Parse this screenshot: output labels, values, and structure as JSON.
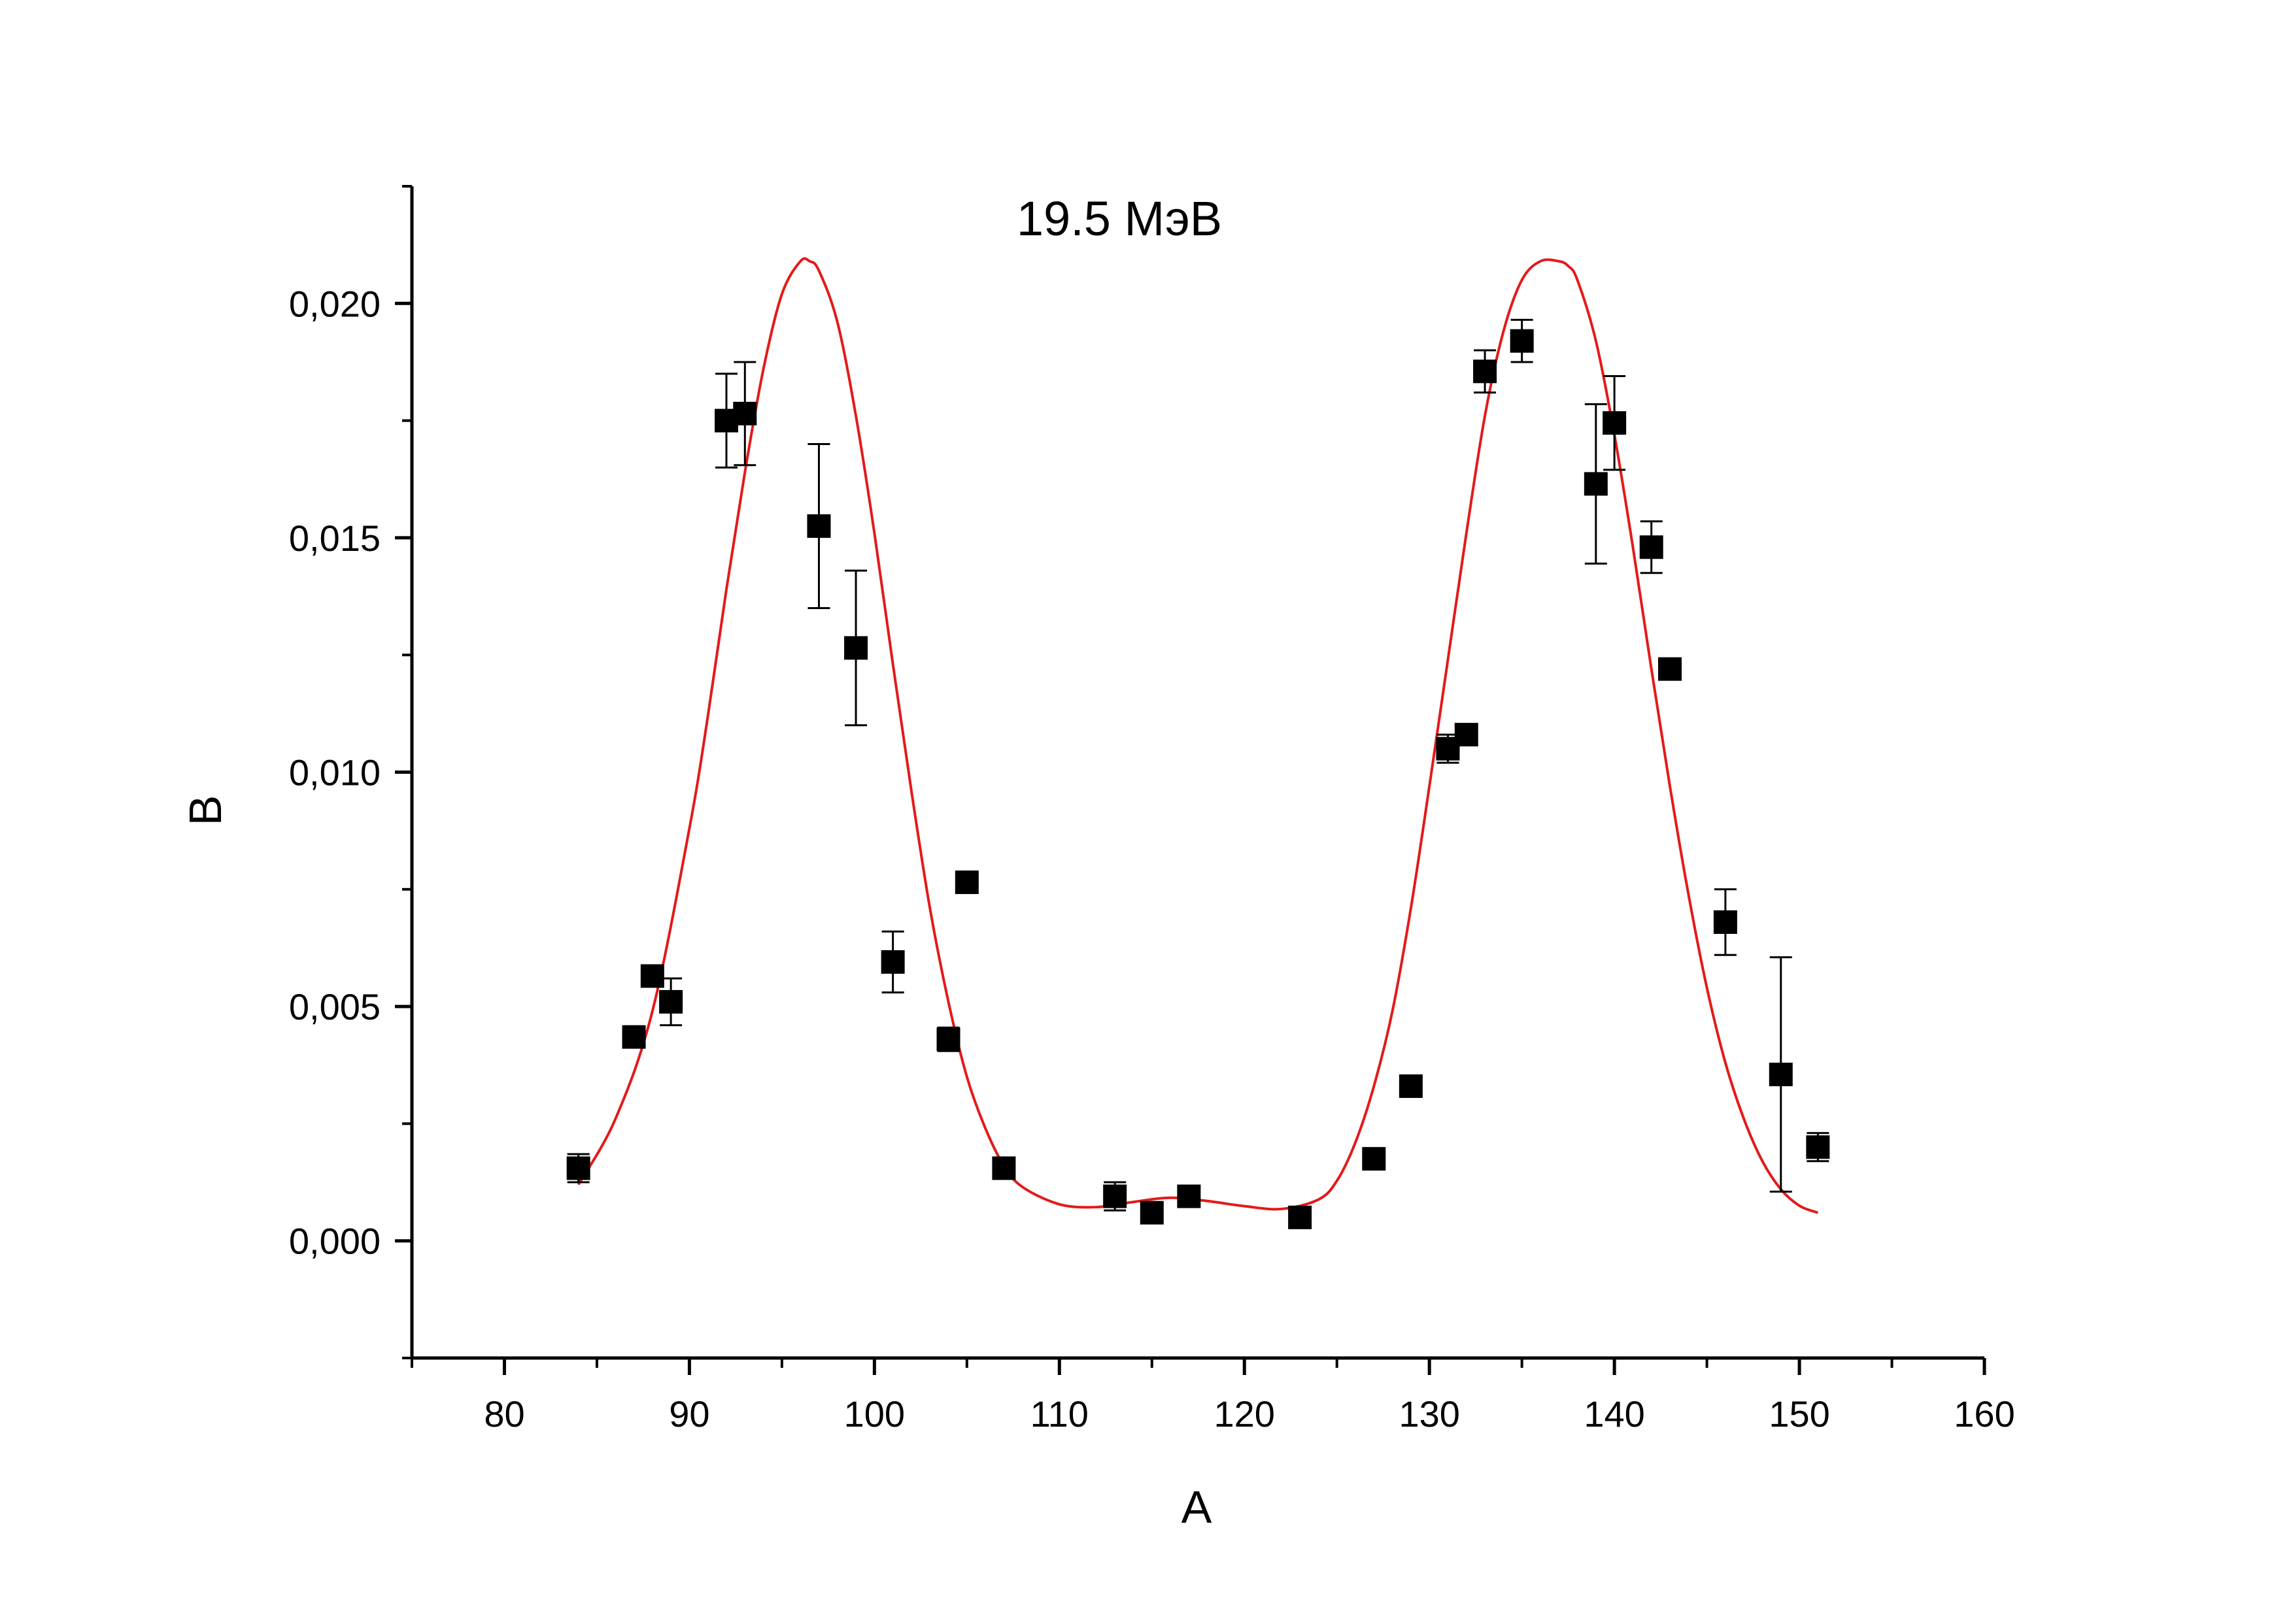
{
  "chart_data": {
    "type": "scatter",
    "title": "19.5 МэВ",
    "xlabel": "A",
    "ylabel": "B",
    "xlim": [
      75,
      160
    ],
    "ylim": [
      -0.0025,
      0.0225
    ],
    "x_ticks": [
      80,
      90,
      100,
      110,
      120,
      130,
      140,
      150,
      160
    ],
    "x_tick_labels": [
      "80",
      "90",
      "100",
      "110",
      "120",
      "130",
      "140",
      "150",
      "160"
    ],
    "y_ticks": [
      0.0,
      0.005,
      0.01,
      0.015,
      0.02
    ],
    "y_tick_labels": [
      "0,000",
      "0,005",
      "0,010",
      "0,015",
      "0,020"
    ],
    "grid": false,
    "series": [
      {
        "kind": "points",
        "color": "#000000",
        "marker": "square",
        "points": [
          {
            "x": 84,
            "y": 0.00155,
            "err": 0.0003
          },
          {
            "x": 87,
            "y": 0.00435,
            "err": 0.0
          },
          {
            "x": 88,
            "y": 0.00565,
            "err": 0.0
          },
          {
            "x": 89,
            "y": 0.0051,
            "err": 0.0005
          },
          {
            "x": 92,
            "y": 0.0175,
            "err": 0.001
          },
          {
            "x": 93,
            "y": 0.01765,
            "err": 0.0011
          },
          {
            "x": 97,
            "y": 0.01525,
            "err": 0.00175
          },
          {
            "x": 99,
            "y": 0.01265,
            "err": 0.00165
          },
          {
            "x": 101,
            "y": 0.00595,
            "err": 0.00065
          },
          {
            "x": 104,
            "y": 0.0043,
            "err": 0.00025
          },
          {
            "x": 105,
            "y": 0.00765,
            "err": 0.0
          },
          {
            "x": 107,
            "y": 0.00155,
            "err": 0.0
          },
          {
            "x": 113,
            "y": 0.00095,
            "err": 0.0003
          },
          {
            "x": 115,
            "y": 0.0006,
            "err": 0.0
          },
          {
            "x": 117,
            "y": 0.00095,
            "err": 0.0
          },
          {
            "x": 123,
            "y": 0.0005,
            "err": 0.0
          },
          {
            "x": 127,
            "y": 0.00175,
            "err": 0.0
          },
          {
            "x": 129,
            "y": 0.0033,
            "err": 0.0
          },
          {
            "x": 131,
            "y": 0.0105,
            "err": 0.0003
          },
          {
            "x": 132,
            "y": 0.0108,
            "err": 0.0
          },
          {
            "x": 133,
            "y": 0.01855,
            "err": 0.00045
          },
          {
            "x": 135,
            "y": 0.0192,
            "err": 0.00045
          },
          {
            "x": 139,
            "y": 0.01615,
            "err": 0.0017
          },
          {
            "x": 140,
            "y": 0.01745,
            "err": 0.001
          },
          {
            "x": 142,
            "y": 0.0148,
            "err": 0.00055
          },
          {
            "x": 143,
            "y": 0.0122,
            "err": 0.0
          },
          {
            "x": 146,
            "y": 0.0068,
            "err": 0.0007
          },
          {
            "x": 149,
            "y": 0.00355,
            "err": 0.0025
          },
          {
            "x": 151,
            "y": 0.002,
            "err": 0.0003
          }
        ]
      },
      {
        "kind": "line",
        "color": "#e31a1a",
        "x": [
          84,
          86,
          88,
          90,
          91,
          92,
          93,
          94,
          95,
          96,
          96.5,
          97,
          98,
          99,
          100,
          101,
          102,
          103,
          104,
          105,
          106,
          107,
          108,
          110,
          112,
          114,
          116,
          118,
          120,
          122,
          124,
          125,
          126,
          127,
          128,
          129,
          130,
          131,
          132,
          133,
          134,
          135,
          136,
          137,
          137.5,
          138,
          139,
          140,
          141,
          142,
          143,
          144,
          145,
          146,
          147,
          148,
          149,
          150,
          151
        ],
        "y": [
          0.0012,
          0.0026,
          0.0049,
          0.0088,
          0.0112,
          0.0139,
          0.0164,
          0.0186,
          0.0202,
          0.0209,
          0.0209,
          0.0207,
          0.0196,
          0.0176,
          0.0151,
          0.0123,
          0.0096,
          0.0071,
          0.0051,
          0.0035,
          0.0024,
          0.0016,
          0.00115,
          0.00078,
          0.00072,
          0.00083,
          0.00092,
          0.00085,
          0.00074,
          0.00068,
          0.00088,
          0.00128,
          0.0021,
          0.0033,
          0.0049,
          0.0071,
          0.0097,
          0.0124,
          0.0151,
          0.0176,
          0.0194,
          0.0205,
          0.0209,
          0.0209,
          0.0208,
          0.0205,
          0.0192,
          0.0172,
          0.0148,
          0.0122,
          0.0097,
          0.0074,
          0.0054,
          0.0038,
          0.0026,
          0.0017,
          0.0011,
          0.00075,
          0.0006
        ]
      }
    ]
  }
}
